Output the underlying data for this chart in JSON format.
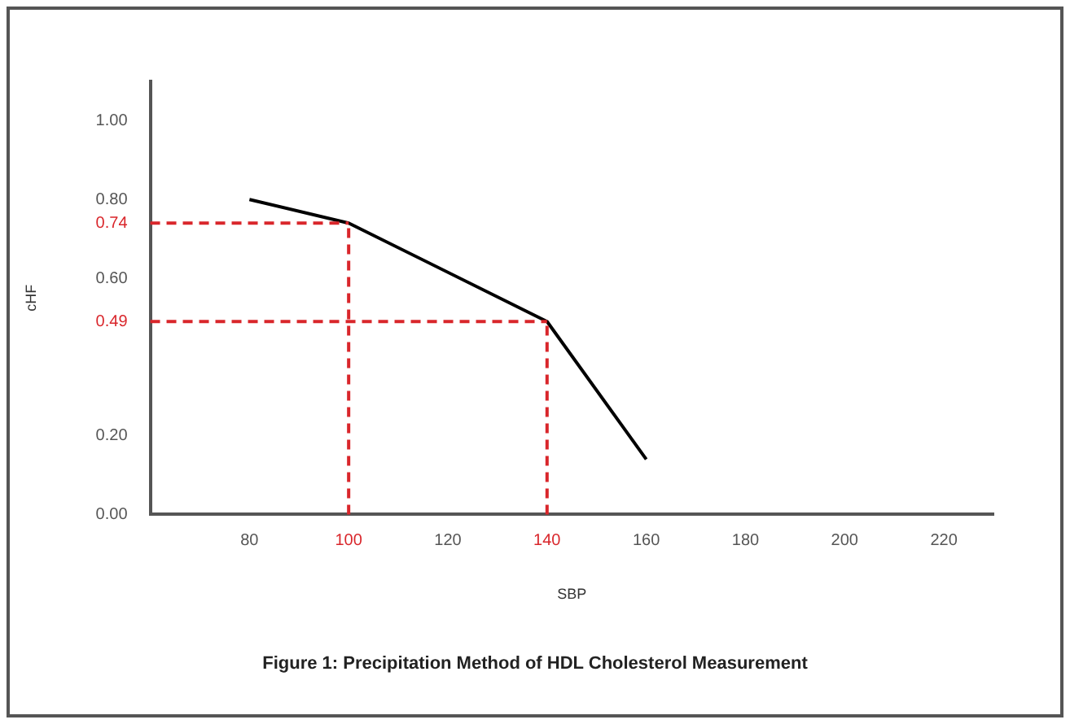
{
  "chart_data": {
    "type": "line",
    "title": "Figure 1: Precipitation Method of HDL Cholesterol Measurement",
    "xlabel": "SBP",
    "ylabel": "cHF",
    "series": [
      {
        "color": "#000000",
        "x": [
          80,
          100,
          140,
          160
        ],
        "values": [
          0.8,
          0.74,
          0.49,
          0.14
        ]
      }
    ],
    "xlim": [
      60,
      230
    ],
    "xticks": [
      80,
      100,
      120,
      140,
      160,
      180,
      200,
      220
    ],
    "ylim": [
      0,
      1.1
    ],
    "yticks": [
      {
        "value": 0,
        "label": "0.00"
      },
      {
        "value": 0.2,
        "label": "0.20"
      },
      {
        "value": 0.49,
        "label": "0.49"
      },
      {
        "value": 0.6,
        "label": "0.60"
      },
      {
        "value": 0.74,
        "label": "0.74"
      },
      {
        "value": 0.8,
        "label": "0.80"
      },
      {
        "value": 1,
        "label": "1.00"
      }
    ],
    "ref_lines": [
      {
        "axis": "x",
        "value": 100,
        "color": "#d9262b",
        "line_style": "dashed"
      },
      {
        "axis": "x",
        "value": 140,
        "color": "#d9262b",
        "line_style": "dashed"
      },
      {
        "axis": "y",
        "value": 0.74,
        "color": "#d9262b",
        "line_style": "dashed"
      },
      {
        "axis": "y",
        "value": 0.49,
        "color": "#d9262b",
        "line_style": "dashed"
      }
    ],
    "grid": false,
    "legend": false,
    "marker": "none",
    "line_style": "solid"
  }
}
